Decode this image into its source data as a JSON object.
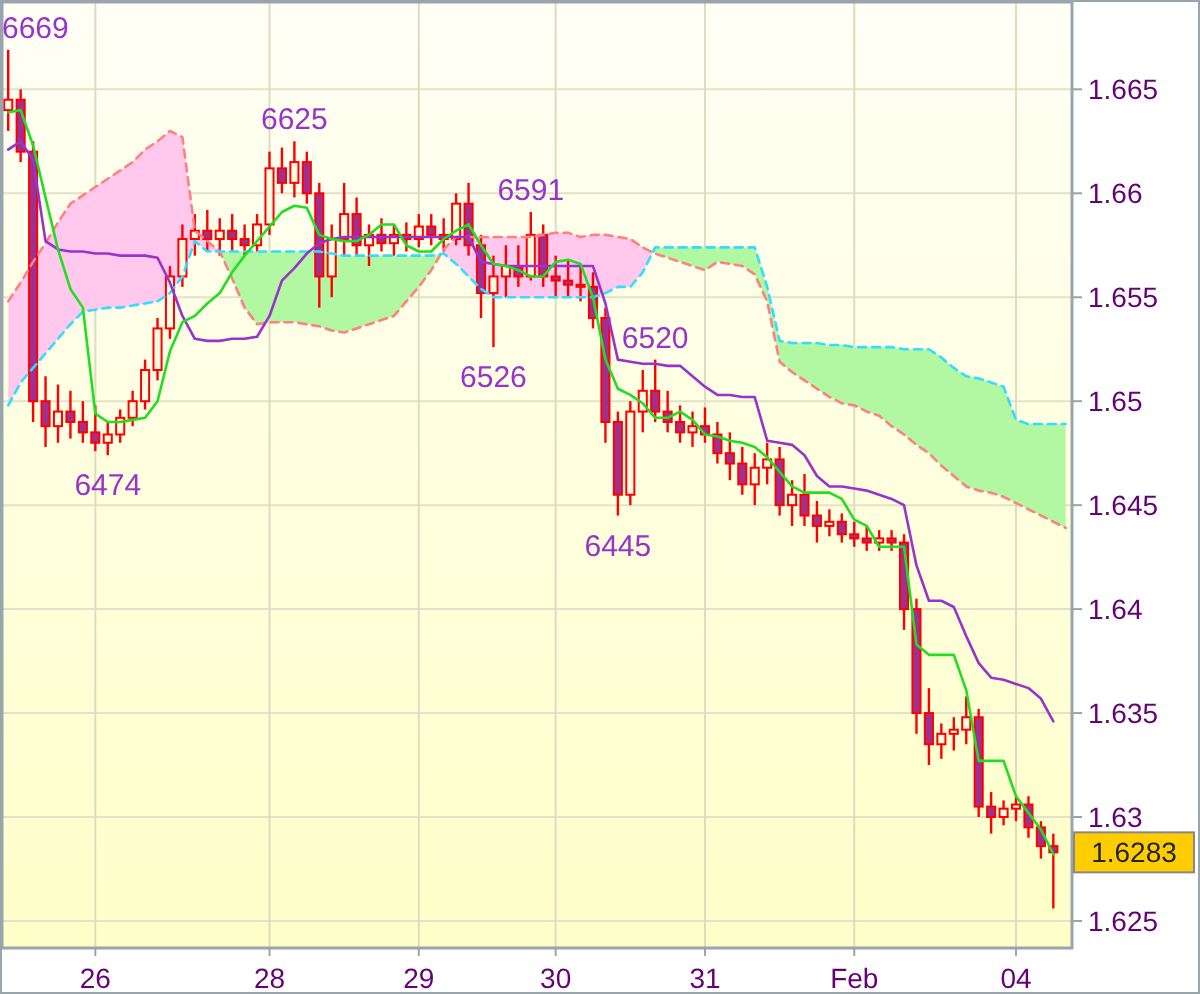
{
  "chart_data": {
    "type": "candlestick",
    "color": "#ff0000",
    "categories": [
      null,
      null,
      null,
      null,
      null,
      null,
      null,
      "26",
      null,
      null,
      null,
      null,
      null,
      null,
      null,
      null,
      null,
      null,
      null,
      null,
      null,
      "28",
      null,
      null,
      null,
      null,
      null,
      null,
      null,
      null,
      null,
      null,
      null,
      "29",
      null,
      null,
      null,
      null,
      null,
      null,
      null,
      null,
      null,
      null,
      "30",
      null,
      null,
      null,
      null,
      null,
      null,
      null,
      null,
      null,
      null,
      null,
      "31",
      null,
      null,
      null,
      null,
      null,
      null,
      null,
      null,
      null,
      null,
      null,
      "Feb",
      null,
      null,
      null,
      null,
      null,
      null,
      null,
      null,
      null,
      null,
      null,
      null,
      "04",
      null,
      null,
      null,
      null
    ],
    "ohlc": [
      [
        1.664,
        1.6669,
        1.663,
        1.6645
      ],
      [
        1.6645,
        1.665,
        1.6615,
        1.662
      ],
      [
        1.662,
        1.6625,
        1.649,
        1.65
      ],
      [
        1.65,
        1.6512,
        1.6478,
        1.6488
      ],
      [
        1.6488,
        1.6508,
        1.648,
        1.6495
      ],
      [
        1.6495,
        1.6505,
        1.6482,
        1.649
      ],
      [
        1.649,
        1.65,
        1.648,
        1.6485
      ],
      [
        1.6485,
        1.6498,
        1.6476,
        1.648
      ],
      [
        1.648,
        1.649,
        1.6474,
        1.6484
      ],
      [
        1.6484,
        1.6496,
        1.648,
        1.6492
      ],
      [
        1.6492,
        1.6505,
        1.6488,
        1.65
      ],
      [
        1.65,
        1.652,
        1.6496,
        1.6515
      ],
      [
        1.6515,
        1.654,
        1.651,
        1.6535
      ],
      [
        1.6535,
        1.6565,
        1.653,
        1.656
      ],
      [
        1.656,
        1.6585,
        1.6555,
        1.6578
      ],
      [
        1.6578,
        1.659,
        1.657,
        1.6582
      ],
      [
        1.6582,
        1.6592,
        1.6572,
        1.6578
      ],
      [
        1.6578,
        1.6588,
        1.657,
        1.6582
      ],
      [
        1.6582,
        1.659,
        1.6572,
        1.6578
      ],
      [
        1.6578,
        1.6585,
        1.657,
        1.6575
      ],
      [
        1.6575,
        1.659,
        1.6572,
        1.6585
      ],
      [
        1.6585,
        1.662,
        1.658,
        1.6612
      ],
      [
        1.6612,
        1.6622,
        1.66,
        1.6605
      ],
      [
        1.6605,
        1.6625,
        1.6598,
        1.6615
      ],
      [
        1.6615,
        1.662,
        1.6595,
        1.66
      ],
      [
        1.66,
        1.6605,
        1.6545,
        1.656
      ],
      [
        1.656,
        1.6585,
        1.655,
        1.6578
      ],
      [
        1.6578,
        1.6605,
        1.657,
        1.659
      ],
      [
        1.659,
        1.6598,
        1.657,
        1.6575
      ],
      [
        1.6575,
        1.6585,
        1.6565,
        1.658
      ],
      [
        1.658,
        1.6588,
        1.6572,
        1.6576
      ],
      [
        1.6576,
        1.6585,
        1.657,
        1.658
      ],
      [
        1.658,
        1.6586,
        1.6572,
        1.6578
      ],
      [
        1.6578,
        1.659,
        1.6574,
        1.6584
      ],
      [
        1.6584,
        1.659,
        1.6575,
        1.658
      ],
      [
        1.658,
        1.6588,
        1.6572,
        1.6578
      ],
      [
        1.6578,
        1.66,
        1.6575,
        1.6595
      ],
      [
        1.6595,
        1.6605,
        1.657,
        1.6575
      ],
      [
        1.6575,
        1.658,
        1.654,
        1.6552
      ],
      [
        1.6552,
        1.657,
        1.6526,
        1.656
      ],
      [
        1.656,
        1.6575,
        1.655,
        1.6565
      ],
      [
        1.6565,
        1.6575,
        1.6555,
        1.656
      ],
      [
        1.656,
        1.6591,
        1.6558,
        1.658
      ],
      [
        1.658,
        1.6585,
        1.6555,
        1.656
      ],
      [
        1.656,
        1.657,
        1.655,
        1.6558
      ],
      [
        1.6558,
        1.6568,
        1.655,
        1.6556
      ],
      [
        1.6556,
        1.6565,
        1.6548,
        1.6555
      ],
      [
        1.6555,
        1.6562,
        1.6535,
        1.654
      ],
      [
        1.654,
        1.6545,
        1.648,
        1.649
      ],
      [
        1.649,
        1.6495,
        1.6445,
        1.6455
      ],
      [
        1.6455,
        1.65,
        1.645,
        1.6495
      ],
      [
        1.6495,
        1.6515,
        1.6485,
        1.6505
      ],
      [
        1.6505,
        1.652,
        1.649,
        1.6495
      ],
      [
        1.6495,
        1.6505,
        1.6485,
        1.649
      ],
      [
        1.649,
        1.6498,
        1.648,
        1.6485
      ],
      [
        1.6485,
        1.6495,
        1.6478,
        1.6488
      ],
      [
        1.6488,
        1.6497,
        1.648,
        1.6484
      ],
      [
        1.6484,
        1.649,
        1.647,
        1.6475
      ],
      [
        1.6475,
        1.6485,
        1.6462,
        1.647
      ],
      [
        1.647,
        1.6478,
        1.6455,
        1.646
      ],
      [
        1.646,
        1.6475,
        1.645,
        1.6468
      ],
      [
        1.6468,
        1.648,
        1.646,
        1.6472
      ],
      [
        1.6472,
        1.6478,
        1.6445,
        1.645
      ],
      [
        1.645,
        1.6462,
        1.644,
        1.6455
      ],
      [
        1.6455,
        1.6465,
        1.644,
        1.6445
      ],
      [
        1.6445,
        1.6452,
        1.6432,
        1.644
      ],
      [
        1.644,
        1.6448,
        1.6435,
        1.6442
      ],
      [
        1.6442,
        1.6446,
        1.6432,
        1.6436
      ],
      [
        1.6436,
        1.6442,
        1.643,
        1.6434
      ],
      [
        1.6434,
        1.644,
        1.6428,
        1.6432
      ],
      [
        1.6432,
        1.6438,
        1.6428,
        1.6434
      ],
      [
        1.6434,
        1.6438,
        1.6428,
        1.6432
      ],
      [
        1.6432,
        1.6436,
        1.639,
        1.64
      ],
      [
        1.64,
        1.6405,
        1.634,
        1.635
      ],
      [
        1.635,
        1.6362,
        1.6325,
        1.6335
      ],
      [
        1.6335,
        1.6345,
        1.6328,
        1.634
      ],
      [
        1.634,
        1.6348,
        1.6332,
        1.6342
      ],
      [
        1.6342,
        1.6358,
        1.6335,
        1.6348
      ],
      [
        1.6348,
        1.6352,
        1.63,
        1.6305
      ],
      [
        1.6305,
        1.6312,
        1.6292,
        1.63
      ],
      [
        1.63,
        1.6308,
        1.6296,
        1.6304
      ],
      [
        1.6304,
        1.631,
        1.6298,
        1.6306
      ],
      [
        1.6306,
        1.631,
        1.629,
        1.6295
      ],
      [
        1.6295,
        1.6298,
        1.628,
        1.6286
      ],
      [
        1.6286,
        1.6292,
        1.6256,
        1.6283
      ],
      null
    ],
    "series": [
      {
        "type": "line",
        "color": "#ff8080",
        "line_style": "dashed",
        "values": [
          1.6548,
          1.6557,
          1.6567,
          1.6576,
          1.6586,
          1.6595,
          1.6599,
          1.6603,
          1.6607,
          1.6611,
          1.6615,
          1.6621,
          1.6625,
          1.663,
          1.6627,
          1.6582,
          1.6577,
          1.6572,
          1.6559,
          1.6545,
          1.6537,
          1.6538,
          1.6538,
          1.6538,
          1.6537,
          1.6536,
          1.6534,
          1.6533,
          1.6535,
          1.6537,
          1.6539,
          1.6541,
          1.6548,
          1.6555,
          1.6563,
          1.6573,
          1.6579,
          1.6579,
          1.6579,
          1.6579,
          1.6579,
          1.6579,
          1.6579,
          1.658,
          1.6581,
          1.6581,
          1.6579,
          1.658,
          1.658,
          1.6579,
          1.6578,
          1.6574,
          1.6571,
          1.6569,
          1.6567,
          1.6565,
          1.6563,
          1.6567,
          1.6566,
          1.6565,
          1.6561,
          1.6548,
          1.6519,
          1.6514,
          1.651,
          1.6506,
          1.6502,
          1.6499,
          1.6498,
          1.6495,
          1.6493,
          1.6488,
          1.6484,
          1.6479,
          1.6475,
          1.6469,
          1.6464,
          1.6459,
          1.6457,
          1.6456,
          1.6454,
          1.6451,
          1.6448,
          1.6445,
          1.6442,
          1.6439
        ]
      },
      {
        "type": "line",
        "color": "#33ddff",
        "line_style": "dashed",
        "values": [
          1.6498,
          1.6509,
          1.6516,
          1.6523,
          1.653,
          1.6537,
          1.6543,
          1.6544,
          1.6545,
          1.6545,
          1.6546,
          1.6547,
          1.6548,
          1.6552,
          1.656,
          1.6577,
          1.6572,
          1.6572,
          1.6572,
          1.6572,
          1.6572,
          1.6572,
          1.6572,
          1.6572,
          1.6572,
          1.6572,
          1.6571,
          1.657,
          1.657,
          1.657,
          1.657,
          1.657,
          1.657,
          1.657,
          1.657,
          1.6571,
          1.6566,
          1.656,
          1.6554,
          1.655,
          1.655,
          1.655,
          1.655,
          1.655,
          1.655,
          1.655,
          1.655,
          1.655,
          1.6552,
          1.6555,
          1.6555,
          1.6562,
          1.6574,
          1.6574,
          1.6574,
          1.6574,
          1.6574,
          1.6574,
          1.6574,
          1.6574,
          1.6574,
          1.6555,
          1.6529,
          1.6528,
          1.6528,
          1.6528,
          1.6527,
          1.6527,
          1.6526,
          1.6526,
          1.6526,
          1.6526,
          1.6525,
          1.6525,
          1.6525,
          1.6521,
          1.6516,
          1.6512,
          1.6511,
          1.6509,
          1.6507,
          1.6491,
          1.6489,
          1.6489,
          1.6489,
          1.6489
        ]
      },
      {
        "type": "line",
        "color": "#9933cc",
        "values": [
          1.6621,
          1.6625,
          1.6616,
          1.6577,
          1.6573,
          1.6572,
          1.6572,
          1.6571,
          1.6571,
          1.657,
          1.657,
          1.657,
          1.6569,
          1.6557,
          1.6541,
          1.653,
          1.6529,
          1.6529,
          1.653,
          1.653,
          1.6531,
          1.6541,
          1.6558,
          1.6564,
          1.6571,
          1.6576,
          1.6578,
          1.6579,
          1.6579,
          1.6579,
          1.6579,
          1.6579,
          1.6579,
          1.6579,
          1.6579,
          1.6579,
          1.6579,
          1.6579,
          1.6567,
          1.6566,
          1.6565,
          1.6565,
          1.6565,
          1.6565,
          1.6565,
          1.6565,
          1.6565,
          1.6565,
          1.6547,
          1.652,
          1.6519,
          1.6518,
          1.6518,
          1.6517,
          1.6517,
          1.6512,
          1.6507,
          1.6503,
          1.6503,
          1.6502,
          1.6502,
          1.6481,
          1.648,
          1.6479,
          1.6474,
          1.6464,
          1.6459,
          1.6459,
          1.6458,
          1.6457,
          1.6455,
          1.6453,
          1.645,
          1.6421,
          1.6404,
          1.6404,
          1.6401,
          1.6387,
          1.6374,
          1.6367,
          1.6366,
          1.6364,
          1.6362,
          1.6357,
          1.6346,
          null
        ]
      },
      {
        "type": "line",
        "color": "#22dd22",
        "values": [
          1.6639,
          1.664,
          1.6623,
          1.6598,
          1.6573,
          1.6554,
          1.6545,
          1.6494,
          1.649,
          1.649,
          1.6491,
          1.6492,
          1.65,
          1.6524,
          1.6538,
          1.6541,
          1.6547,
          1.6552,
          1.6562,
          1.657,
          1.6577,
          1.6584,
          1.6591,
          1.6594,
          1.6593,
          1.658,
          1.6578,
          1.6577,
          1.6577,
          1.658,
          1.6585,
          1.6585,
          1.6575,
          1.6572,
          1.6572,
          1.6578,
          1.6582,
          1.6585,
          1.6575,
          1.6566,
          1.6565,
          1.6563,
          1.656,
          1.656,
          1.6567,
          1.6568,
          1.6566,
          1.655,
          1.652,
          1.6506,
          1.6503,
          1.6499,
          1.6492,
          1.6492,
          1.6495,
          1.6491,
          1.6484,
          1.6483,
          1.6481,
          1.648,
          1.6478,
          1.6473,
          1.6466,
          1.6459,
          1.6456,
          1.6456,
          1.6456,
          1.6453,
          1.6443,
          1.644,
          1.643,
          1.643,
          1.643,
          1.6383,
          1.6378,
          1.6378,
          1.6378,
          1.6361,
          1.6327,
          1.6327,
          1.6327,
          1.631,
          1.6302,
          1.6294,
          1.6282,
          null
        ]
      }
    ],
    "ylim": [
      1.6237,
      1.6692
    ],
    "yticks": [
      1.625,
      1.63,
      1.635,
      1.64,
      1.645,
      1.65,
      1.655,
      1.66,
      1.665
    ],
    "grid": true,
    "annotations": [
      "6669",
      {
        "text": "6474",
        "y": 1.6474
      },
      {
        "text": "6625",
        "y": 1.6625
      },
      {
        "text": "6526",
        "y": 1.6526
      },
      {
        "text": "6591",
        "y": 1.6591
      },
      {
        "text": "6445",
        "y": 1.6445
      },
      {
        "text": "6520",
        "y": 1.652
      },
      "1.6283"
    ]
  }
}
